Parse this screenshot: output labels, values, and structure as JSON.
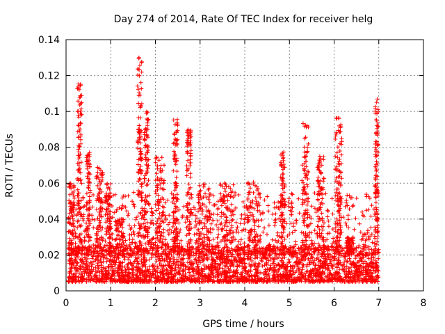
{
  "chart_data": {
    "type": "scatter",
    "title": "Day 274 of 2014, Rate Of TEC Index for receiver helg",
    "xlabel": "GPS time / hours",
    "ylabel": "ROTI / TECUs",
    "xlim": [
      0,
      8
    ],
    "ylim": [
      0,
      0.14
    ],
    "x_ticks": [
      0,
      1,
      2,
      3,
      4,
      5,
      6,
      7,
      8
    ],
    "x_tick_labels": [
      "0",
      "1",
      "2",
      "3",
      "4",
      "5",
      "6",
      "7",
      "8"
    ],
    "y_ticks": [
      0,
      0.02,
      0.04,
      0.06,
      0.08,
      0.1,
      0.12,
      0.14
    ],
    "y_tick_labels": [
      "0",
      "0.02",
      "0.04",
      "0.06",
      "0.08",
      "0.1",
      "0.12",
      "0.14"
    ],
    "grid": true,
    "marker": "+",
    "series_color": "#ff0000",
    "x_range_of_data": [
      0.05,
      7.0
    ],
    "baseline_band": [
      0.005,
      0.025
    ],
    "bursts": [
      {
        "x": 0.12,
        "width": 0.12,
        "peak": 0.06
      },
      {
        "x": 0.3,
        "width": 0.1,
        "peak": 0.116
      },
      {
        "x": 0.5,
        "width": 0.08,
        "peak": 0.08
      },
      {
        "x": 0.75,
        "width": 0.15,
        "peak": 0.07
      },
      {
        "x": 0.95,
        "width": 0.1,
        "peak": 0.06
      },
      {
        "x": 1.2,
        "width": 0.2,
        "peak": 0.04
      },
      {
        "x": 1.65,
        "width": 0.1,
        "peak": 0.131
      },
      {
        "x": 1.8,
        "width": 0.1,
        "peak": 0.1
      },
      {
        "x": 2.1,
        "width": 0.2,
        "peak": 0.075
      },
      {
        "x": 2.45,
        "width": 0.1,
        "peak": 0.096
      },
      {
        "x": 2.75,
        "width": 0.1,
        "peak": 0.09
      },
      {
        "x": 3.1,
        "width": 0.3,
        "peak": 0.06
      },
      {
        "x": 3.6,
        "width": 0.3,
        "peak": 0.06
      },
      {
        "x": 4.2,
        "width": 0.3,
        "peak": 0.061
      },
      {
        "x": 4.85,
        "width": 0.1,
        "peak": 0.079
      },
      {
        "x": 5.35,
        "width": 0.15,
        "peak": 0.096
      },
      {
        "x": 5.7,
        "width": 0.15,
        "peak": 0.075
      },
      {
        "x": 6.1,
        "width": 0.15,
        "peak": 0.097
      },
      {
        "x": 6.35,
        "width": 0.15,
        "peak": 0.03
      },
      {
        "x": 6.95,
        "width": 0.08,
        "peak": 0.107
      }
    ]
  }
}
